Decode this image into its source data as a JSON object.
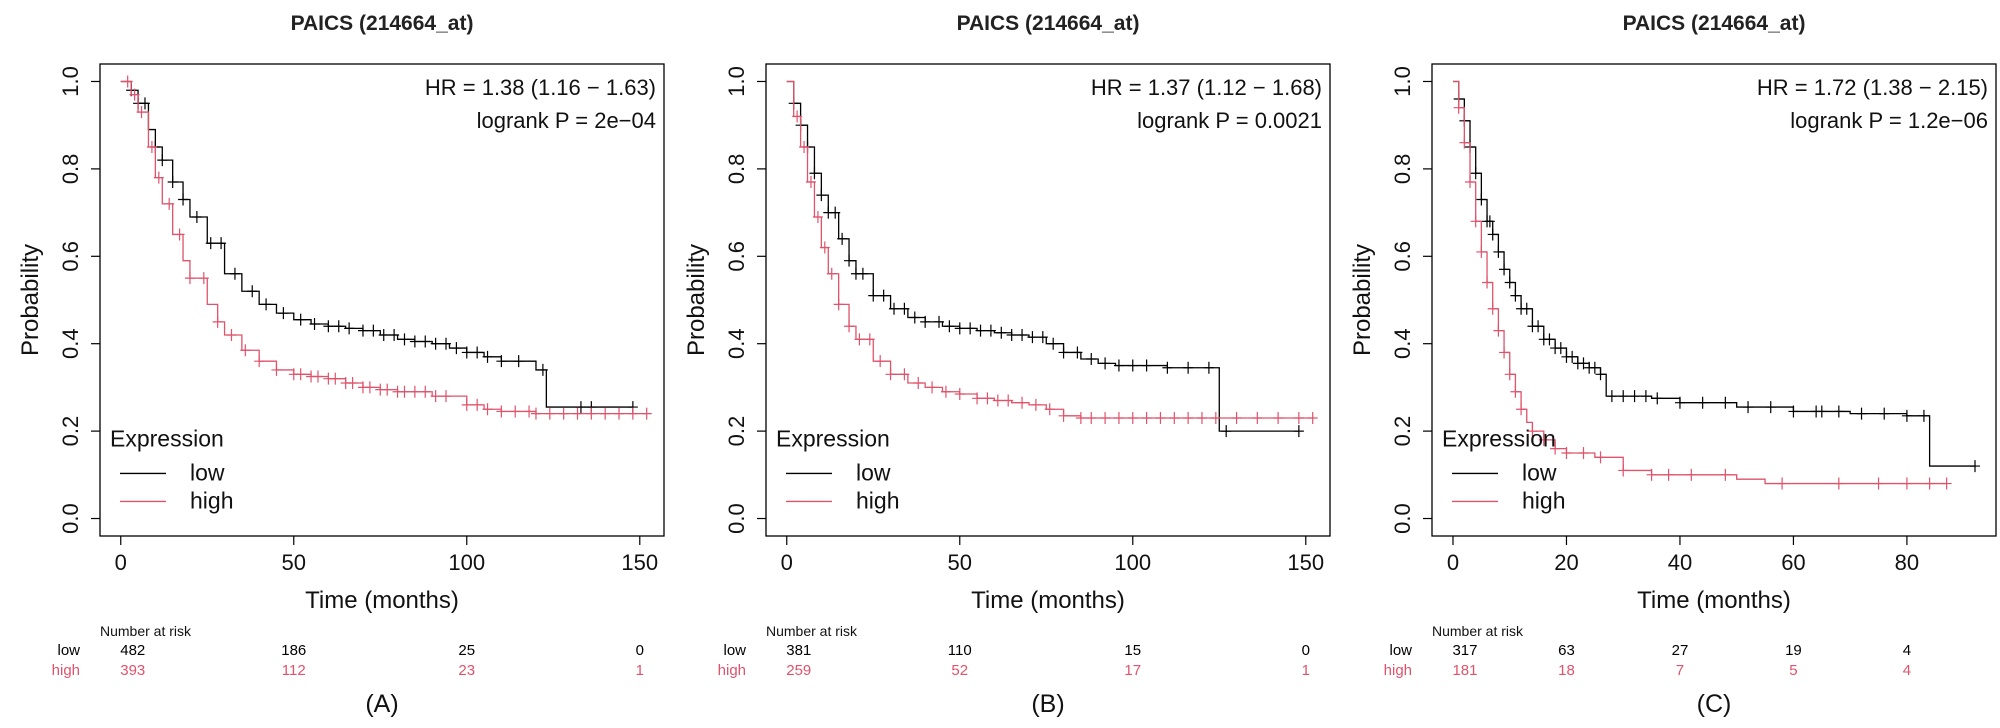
{
  "colors": {
    "low": "#000000",
    "high": "#DF536B"
  },
  "chart_data": [
    {
      "type": "line",
      "title": "PAICS (214664_at)",
      "panel_label": "(A)",
      "xlabel": "Time (months)",
      "ylabel": "Probability",
      "xlim": [
        -6,
        157
      ],
      "ylim": [
        -0.04,
        1.04
      ],
      "xticks": [
        0,
        50,
        100,
        150
      ],
      "xtick_labels": [
        "0",
        "50",
        "100",
        "150"
      ],
      "yticks": [
        0.0,
        0.2,
        0.4,
        0.6,
        0.8,
        1.0
      ],
      "ytick_labels": [
        "0.0",
        "0.2",
        "0.4",
        "0.6",
        "0.8",
        "1.0"
      ],
      "hr_text": "HR = 1.38 (1.16 − 1.63)",
      "logrank_text": "logrank P = 2e−04",
      "legend_title": "Expression",
      "series": [
        {
          "name": "low",
          "color_key": "low",
          "x": [
            0,
            3,
            5,
            8,
            10,
            12,
            15,
            18,
            20,
            25,
            30,
            35,
            40,
            45,
            50,
            55,
            60,
            65,
            70,
            75,
            80,
            85,
            90,
            95,
            100,
            105,
            110,
            115,
            120,
            123,
            123,
            130,
            140,
            148
          ],
          "y": [
            1.0,
            0.98,
            0.95,
            0.89,
            0.85,
            0.82,
            0.77,
            0.73,
            0.69,
            0.63,
            0.56,
            0.52,
            0.49,
            0.47,
            0.455,
            0.445,
            0.44,
            0.435,
            0.43,
            0.42,
            0.41,
            0.405,
            0.4,
            0.39,
            0.38,
            0.37,
            0.36,
            0.36,
            0.34,
            0.34,
            0.255,
            0.255,
            0.255,
            0.255
          ],
          "censor_x": [
            3,
            5,
            7,
            10,
            12,
            15,
            18,
            22,
            26,
            29,
            33,
            38,
            42,
            47,
            52,
            56,
            60,
            63,
            66,
            70,
            73,
            76,
            79,
            82,
            85,
            88,
            91,
            94,
            97,
            100,
            103,
            106,
            110,
            115,
            122,
            133,
            136,
            148
          ],
          "risk": [
            "482",
            "186",
            "25",
            "0"
          ]
        },
        {
          "name": "high",
          "color_key": "high",
          "x": [
            0,
            3,
            5,
            8,
            10,
            12,
            15,
            18,
            20,
            25,
            28,
            30,
            35,
            40,
            45,
            50,
            55,
            60,
            65,
            70,
            75,
            80,
            90,
            100,
            105,
            110,
            120,
            130,
            140,
            152
          ],
          "y": [
            1.0,
            0.97,
            0.93,
            0.85,
            0.78,
            0.72,
            0.65,
            0.59,
            0.55,
            0.49,
            0.45,
            0.42,
            0.385,
            0.36,
            0.34,
            0.33,
            0.325,
            0.32,
            0.31,
            0.3,
            0.295,
            0.29,
            0.28,
            0.26,
            0.25,
            0.245,
            0.24,
            0.24,
            0.24,
            0.24
          ],
          "censor_x": [
            2,
            4,
            6,
            9,
            11,
            14,
            17,
            20,
            24,
            28,
            32,
            36,
            40,
            45,
            50,
            52,
            55,
            57,
            60,
            62,
            65,
            67,
            70,
            72,
            75,
            77,
            80,
            82,
            85,
            88,
            91,
            94,
            100,
            103,
            106,
            110,
            114,
            118,
            120,
            124,
            128,
            132,
            136,
            140,
            144,
            148,
            152
          ],
          "risk": [
            "393",
            "112",
            "23",
            "1"
          ]
        }
      ],
      "risk_times": [
        0,
        50,
        100,
        150
      ],
      "risk_header": "Number at risk"
    },
    {
      "type": "line",
      "title": "PAICS (214664_at)",
      "panel_label": "(B)",
      "xlabel": "Time (months)",
      "ylabel": "Probability",
      "xlim": [
        -6,
        157
      ],
      "ylim": [
        -0.04,
        1.04
      ],
      "xticks": [
        0,
        50,
        100,
        150
      ],
      "xtick_labels": [
        "0",
        "50",
        "100",
        "150"
      ],
      "yticks": [
        0.0,
        0.2,
        0.4,
        0.6,
        0.8,
        1.0
      ],
      "ytick_labels": [
        "0.0",
        "0.2",
        "0.4",
        "0.6",
        "0.8",
        "1.0"
      ],
      "hr_text": "HR = 1.37 (1.12 − 1.68)",
      "logrank_text": "logrank P = 0.0021",
      "legend_title": "Expression",
      "series": [
        {
          "name": "low",
          "color_key": "low",
          "x": [
            0,
            2,
            4,
            6,
            8,
            10,
            12,
            15,
            18,
            20,
            25,
            30,
            35,
            40,
            45,
            50,
            55,
            60,
            65,
            70,
            75,
            80,
            85,
            90,
            95,
            100,
            110,
            113,
            125,
            125,
            140,
            148
          ],
          "y": [
            1.0,
            0.95,
            0.9,
            0.85,
            0.79,
            0.74,
            0.7,
            0.64,
            0.59,
            0.56,
            0.51,
            0.48,
            0.46,
            0.45,
            0.44,
            0.435,
            0.43,
            0.425,
            0.42,
            0.415,
            0.4,
            0.38,
            0.365,
            0.355,
            0.35,
            0.35,
            0.345,
            0.345,
            0.22,
            0.2,
            0.2,
            0.2
          ],
          "censor_x": [
            2,
            4,
            6,
            8,
            10,
            12,
            14,
            16,
            18,
            20,
            22,
            25,
            28,
            31,
            34,
            37,
            40,
            44,
            47,
            50,
            53,
            56,
            59,
            62,
            65,
            68,
            71,
            74,
            77,
            80,
            84,
            88,
            92,
            96,
            100,
            104,
            110,
            116,
            122,
            127,
            148
          ],
          "risk": [
            "381",
            "110",
            "15",
            "0"
          ]
        },
        {
          "name": "high",
          "color_key": "high",
          "x": [
            0,
            2,
            4,
            6,
            8,
            10,
            12,
            15,
            18,
            20,
            25,
            30,
            35,
            40,
            45,
            50,
            55,
            60,
            65,
            70,
            75,
            80,
            85,
            90,
            100,
            110,
            120,
            130,
            140,
            152
          ],
          "y": [
            1.0,
            0.92,
            0.85,
            0.77,
            0.69,
            0.62,
            0.56,
            0.49,
            0.44,
            0.41,
            0.36,
            0.33,
            0.31,
            0.3,
            0.29,
            0.285,
            0.275,
            0.27,
            0.265,
            0.26,
            0.25,
            0.235,
            0.23,
            0.23,
            0.23,
            0.23,
            0.23,
            0.23,
            0.23,
            0.23
          ],
          "censor_x": [
            3,
            5,
            7,
            9,
            11,
            13,
            15,
            18,
            21,
            24,
            27,
            30,
            34,
            38,
            42,
            46,
            50,
            55,
            58,
            61,
            64,
            68,
            72,
            76,
            80,
            85,
            88,
            92,
            96,
            100,
            104,
            108,
            112,
            116,
            120,
            124,
            130,
            136,
            142,
            148,
            152
          ],
          "risk": [
            "259",
            "52",
            "17",
            "1"
          ]
        }
      ],
      "risk_times": [
        0,
        50,
        100,
        150
      ],
      "risk_header": "Number at risk"
    },
    {
      "type": "line",
      "title": "PAICS (214664_at)",
      "panel_label": "(C)",
      "xlabel": "Time (months)",
      "ylabel": "Probability",
      "xlim": [
        -3.7,
        95.7
      ],
      "ylim": [
        -0.04,
        1.04
      ],
      "xticks": [
        0,
        20,
        40,
        60,
        80
      ],
      "xtick_labels": [
        "0",
        "20",
        "40",
        "60",
        "80"
      ],
      "yticks": [
        0.0,
        0.2,
        0.4,
        0.6,
        0.8,
        1.0
      ],
      "ytick_labels": [
        "0.0",
        "0.2",
        "0.4",
        "0.6",
        "0.8",
        "1.0"
      ],
      "hr_text": "HR = 1.72 (1.38 − 2.15)",
      "logrank_text": "logrank P = 1.2e−06",
      "legend_title": "Expression",
      "series": [
        {
          "name": "low",
          "color_key": "low",
          "x": [
            0,
            1,
            2,
            3,
            4,
            5,
            6,
            7,
            8,
            9,
            10,
            11,
            12,
            14,
            16,
            18,
            20,
            22,
            24,
            26,
            27,
            30,
            35,
            40,
            50,
            60,
            70,
            80,
            84,
            84,
            92
          ],
          "y": [
            1.0,
            0.96,
            0.91,
            0.85,
            0.79,
            0.73,
            0.68,
            0.65,
            0.61,
            0.57,
            0.54,
            0.51,
            0.48,
            0.44,
            0.41,
            0.39,
            0.37,
            0.355,
            0.345,
            0.33,
            0.28,
            0.28,
            0.275,
            0.265,
            0.255,
            0.245,
            0.24,
            0.235,
            0.235,
            0.12,
            0.12
          ],
          "censor_x": [
            1,
            2,
            3,
            4,
            5,
            6,
            6.5,
            7,
            8,
            9,
            10,
            11,
            12,
            13,
            14,
            15,
            16,
            17,
            18,
            19,
            20,
            21,
            22,
            23,
            24,
            25,
            26,
            28,
            30,
            32,
            34,
            36,
            40,
            44,
            48,
            52,
            56,
            60,
            64,
            65,
            68,
            72,
            76,
            80,
            83,
            92
          ],
          "risk": [
            "317",
            "63",
            "27",
            "19",
            "4"
          ]
        },
        {
          "name": "high",
          "color_key": "high",
          "x": [
            0,
            1,
            2,
            3,
            4,
            5,
            6,
            7,
            8,
            9,
            10,
            11,
            12,
            13,
            14,
            16,
            18,
            20,
            25,
            30,
            35,
            40,
            50,
            55,
            60,
            70,
            80,
            87
          ],
          "y": [
            1.0,
            0.94,
            0.86,
            0.77,
            0.68,
            0.61,
            0.54,
            0.48,
            0.43,
            0.38,
            0.33,
            0.29,
            0.25,
            0.22,
            0.2,
            0.18,
            0.16,
            0.15,
            0.14,
            0.11,
            0.1,
            0.1,
            0.09,
            0.08,
            0.08,
            0.08,
            0.08,
            0.08
          ],
          "censor_x": [
            1,
            2,
            3,
            4,
            5,
            6,
            7,
            8,
            9,
            10,
            11,
            12,
            14,
            16,
            18,
            20,
            23,
            26,
            30,
            35,
            38,
            42,
            48,
            58,
            68,
            75,
            80,
            84,
            87
          ],
          "risk": [
            "181",
            "18",
            "7",
            "5",
            "4"
          ]
        }
      ],
      "risk_times": [
        0,
        20,
        40,
        60,
        80
      ],
      "risk_header": "Number at risk"
    }
  ]
}
